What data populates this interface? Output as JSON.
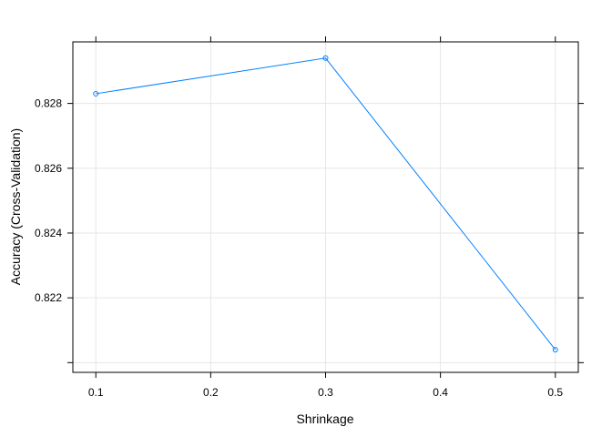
{
  "chart_data": {
    "type": "line",
    "xlabel": "Shrinkage",
    "ylabel": "Accuracy (Cross-Validation)",
    "x": [
      0.1,
      0.3,
      0.5
    ],
    "series": [
      {
        "values": [
          0.8283,
          0.8294,
          0.8204
        ],
        "color": "#0080ff"
      }
    ],
    "xticks": [
      "0.1",
      "0.2",
      "0.3",
      "0.4",
      "0.5"
    ],
    "yticks": [
      "0.822",
      "0.824",
      "0.826",
      "0.828"
    ],
    "xlim": [
      0.08,
      0.52
    ],
    "ylim": [
      0.8197,
      0.8299
    ],
    "grid": true,
    "marker": "circle-open"
  }
}
